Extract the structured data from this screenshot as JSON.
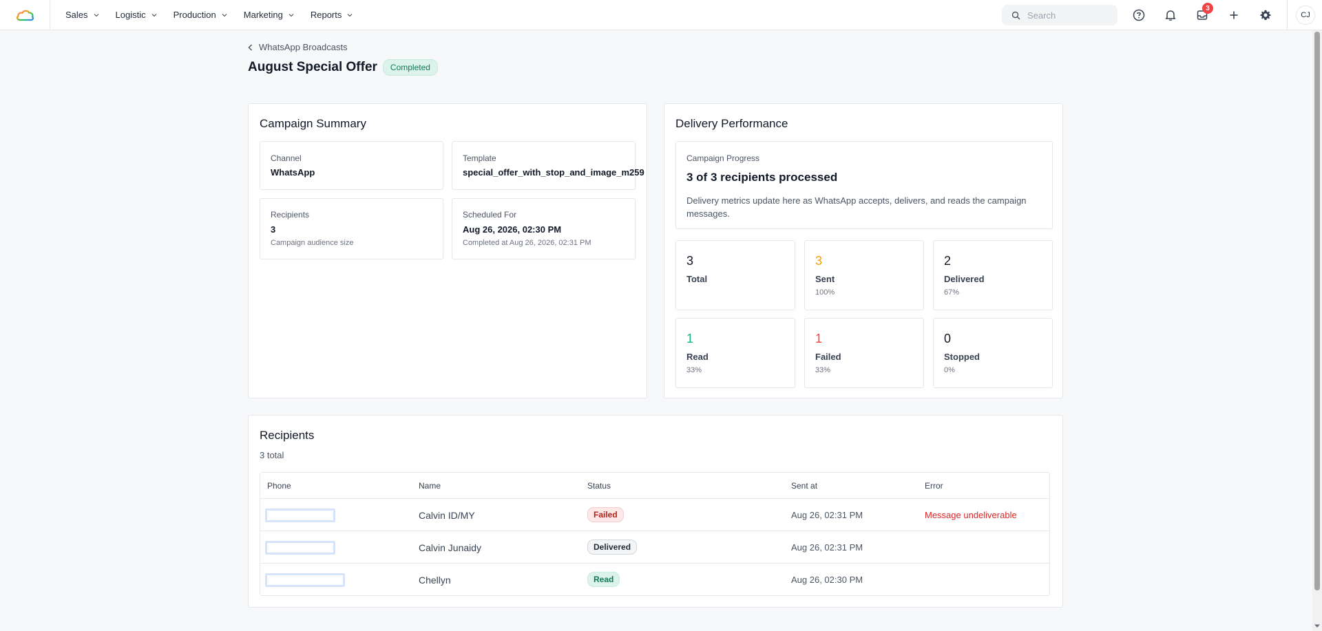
{
  "nav": {
    "items": [
      {
        "label": "Sales"
      },
      {
        "label": "Logistic"
      },
      {
        "label": "Production"
      },
      {
        "label": "Marketing"
      },
      {
        "label": "Reports"
      }
    ],
    "search_placeholder": "Search",
    "inbox_badge": "3",
    "avatar_initials": "CJ"
  },
  "header": {
    "back_label": "WhatsApp Broadcasts",
    "title": "August Special Offer",
    "status": "Completed"
  },
  "summary": {
    "title": "Campaign Summary",
    "channel_label": "Channel",
    "channel_value": "WhatsApp",
    "template_label": "Template",
    "template_value": "special_offer_with_stop_and_image_m259",
    "recipients_label": "Recipients",
    "recipients_value": "3",
    "recipients_sub": "Campaign audience size",
    "scheduled_label": "Scheduled For",
    "scheduled_value": "Aug 26, 2026, 02:30 PM",
    "scheduled_sub": "Completed at Aug 26, 2026, 02:31 PM"
  },
  "delivery": {
    "title": "Delivery Performance",
    "progress_label": "Campaign Progress",
    "progress_value": "3 of 3 recipients processed",
    "progress_desc": "Delivery metrics update here as WhatsApp accepts, delivers, and reads the campaign messages.",
    "metrics": [
      {
        "num": "3",
        "label": "Total",
        "pct": "",
        "color": "#111827"
      },
      {
        "num": "3",
        "label": "Sent",
        "pct": "100%",
        "color": "#f59e0b"
      },
      {
        "num": "2",
        "label": "Delivered",
        "pct": "67%",
        "color": "#111827"
      },
      {
        "num": "1",
        "label": "Read",
        "pct": "33%",
        "color": "#10b981"
      },
      {
        "num": "1",
        "label": "Failed",
        "pct": "33%",
        "color": "#ef4444"
      },
      {
        "num": "0",
        "label": "Stopped",
        "pct": "0%",
        "color": "#111827"
      }
    ]
  },
  "recipients": {
    "title": "Recipients",
    "count_label": "3 total",
    "columns": [
      "Phone",
      "Name",
      "Status",
      "Sent at",
      "Error"
    ],
    "rows": [
      {
        "name": "Calvin ID/MY",
        "status": "Failed",
        "sent_at": "Aug 26, 02:31 PM",
        "error": "Message undeliverable"
      },
      {
        "name": "Calvin Junaidy",
        "status": "Delivered",
        "sent_at": "Aug 26, 02:31 PM",
        "error": ""
      },
      {
        "name": "Chellyn",
        "status": "Read",
        "sent_at": "Aug 26, 02:30 PM",
        "error": ""
      }
    ]
  },
  "colors": {
    "accent_green": "#0f7a5a",
    "failed_red": "#dc2626",
    "sent_orange": "#f59e0b"
  }
}
